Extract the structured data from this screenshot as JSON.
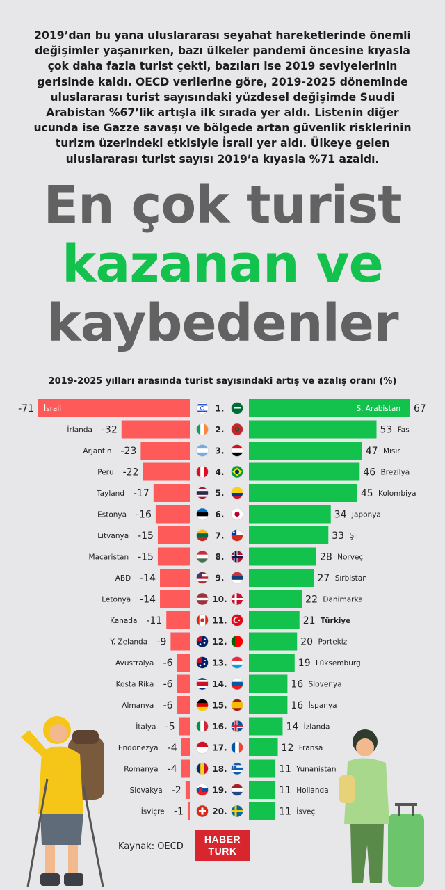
{
  "intro_text": "2019’dan bu yana uluslararası seyahat hareketlerinde önemli değişimler yaşanırken, bazı ülkeler pandemi öncesine kıyasla çok daha fazla turist çekti, bazıları ise 2019 seviyelerinin gerisinde kaldı. OECD verilerine göre, 2019-2025 döneminde uluslararası turist sayısındaki yüzdesel değişimde Suudi Arabistan %67’lik artışla ilk sırada yer aldı. Listenin diğer ucunda ise Gazze savaşı ve bölgede artan güvenlik risklerinin turizm üzerindeki etkisiyle İsrail yer aldı. Ülkeye gelen uluslararası turist sayısı 2019’a kıyasla %71 azaldı.",
  "headline": {
    "line1": "En çok turist",
    "line2": "kazanan ve",
    "line3": "kaybedenler"
  },
  "source": "Kaynak: OECD",
  "logo": {
    "line1": "HABER",
    "line2": "TURK"
  },
  "colors": {
    "gain": "#13c24d",
    "loss": "#ff5a5a",
    "text": "#222222",
    "headline_gray": "#626262",
    "headline_green": "#13c24d",
    "logo": "#d8262e"
  },
  "chart_data": {
    "type": "bar",
    "title": "2019-2025 yılları arasında turist sayısındaki artış ve azalış oranı (%)",
    "ranks": [
      "1.",
      "2.",
      "3.",
      "4.",
      "5.",
      "6.",
      "7.",
      "8.",
      "9.",
      "10.",
      "11.",
      "12.",
      "13.",
      "14.",
      "15.",
      "16.",
      "17.",
      "18.",
      "19.",
      "20."
    ],
    "losers": {
      "categories": [
        "İsrail",
        "İrlanda",
        "Arjantin",
        "Peru",
        "Tayland",
        "Estonya",
        "Litvanya",
        "Macaristan",
        "ABD",
        "Letonya",
        "Kanada",
        "Y. Zelanda",
        "Avustralya",
        "Kosta Rika",
        "Almanya",
        "İtalya",
        "Endonezya",
        "Romanya",
        "Slovakya",
        "İsviçre"
      ],
      "values": [
        -71,
        -32,
        -23,
        -22,
        -17,
        -16,
        -15,
        -15,
        -14,
        -14,
        -11,
        -9,
        -6,
        -6,
        -6,
        -5,
        -4,
        -4,
        -2,
        -1
      ],
      "value_labels": [
        "-71",
        "-32",
        "-23",
        "-22",
        "-17",
        "-16",
        "-15",
        "-15",
        "-14",
        "-14",
        "-11",
        "-9",
        "-6",
        "-6",
        "-6",
        "-5",
        "-4",
        "-4",
        "-2",
        "-1"
      ],
      "flags": [
        "israel-flag",
        "ireland-flag",
        "argentina-flag",
        "peru-flag",
        "thailand-flag",
        "estonia-flag",
        "lithuania-flag",
        "hungary-flag",
        "usa-flag",
        "latvia-flag",
        "canada-flag",
        "new-zealand-flag",
        "australia-flag",
        "costa-rica-flag",
        "germany-flag",
        "italy-flag",
        "indonesia-flag",
        "romania-flag",
        "slovakia-flag",
        "switzerland-flag"
      ]
    },
    "gainers": {
      "categories": [
        "S. Arabistan",
        "Fas",
        "Mısır",
        "Brezilya",
        "Kolombiya",
        "Japonya",
        "Şili",
        "Norveç",
        "Sırbistan",
        "Danimarka",
        "Türkiye",
        "Portekiz",
        "Lüksemburg",
        "Slovenya",
        "İspanya",
        "İzlanda",
        "Fransa",
        "Yunanistan",
        "Hollanda",
        "İsveç"
      ],
      "values": [
        67,
        53,
        47,
        46,
        45,
        34,
        33,
        28,
        27,
        22,
        21,
        20,
        19,
        16,
        16,
        14,
        12,
        11,
        11,
        11
      ],
      "value_labels": [
        "67",
        "53",
        "47",
        "46",
        "45",
        "34",
        "33",
        "28",
        "27",
        "22",
        "21",
        "20",
        "19",
        "16",
        "16",
        "14",
        "12",
        "11",
        "11",
        "11"
      ],
      "flags": [
        "saudi-arabia-flag",
        "morocco-flag",
        "egypt-flag",
        "brazil-flag",
        "colombia-flag",
        "japan-flag",
        "chile-flag",
        "norway-flag",
        "serbia-flag",
        "denmark-flag",
        "turkey-flag",
        "portugal-flag",
        "luxembourg-flag",
        "slovenia-flag",
        "spain-flag",
        "iceland-flag",
        "france-flag",
        "greece-flag",
        "netherlands-flag",
        "sweden-flag"
      ],
      "highlight": "Türkiye"
    },
    "xlim": [
      -71,
      67
    ],
    "grid": false,
    "legend": "none"
  }
}
